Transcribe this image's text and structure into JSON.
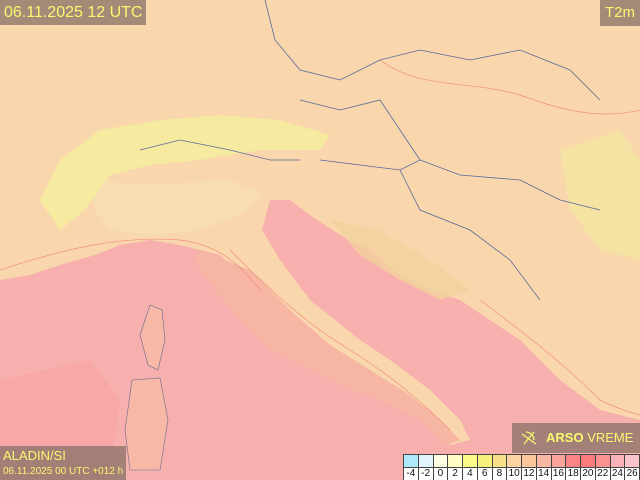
{
  "header": {
    "valid_time": "06.11.2025 12 UTC",
    "parameter": "T2m"
  },
  "model": {
    "name": "ALADIN/SI",
    "run": "06.11.2025 00 UTC +012 h"
  },
  "brand": {
    "bold": "ARSO",
    "light": "VREME",
    "icon": "arso-logo-icon"
  },
  "legend": {
    "ticks": [
      "-4",
      "-2",
      "0",
      "2",
      "4",
      "6",
      "8",
      "10",
      "12",
      "14",
      "16",
      "18",
      "20",
      "22",
      "24",
      "26"
    ],
    "colors": [
      "#aee8fa",
      "#e2f4fc",
      "#fffde2",
      "#fffcc4",
      "#fbfb8a",
      "#f8f07c",
      "#f6e088",
      "#fbd4a4",
      "#fbc69c",
      "#fbb8a4",
      "#fba49a",
      "#fb8484",
      "#fb7a7a",
      "#fb9292",
      "#fbb2b8",
      "#fcc4cc"
    ]
  },
  "map_colors": {
    "sea": "#f8b0ae",
    "land_warm": "#f9c8a8",
    "land_mild": "#f8dcae",
    "alps": "#f6ee9c",
    "coast": "#f5a0a0"
  }
}
